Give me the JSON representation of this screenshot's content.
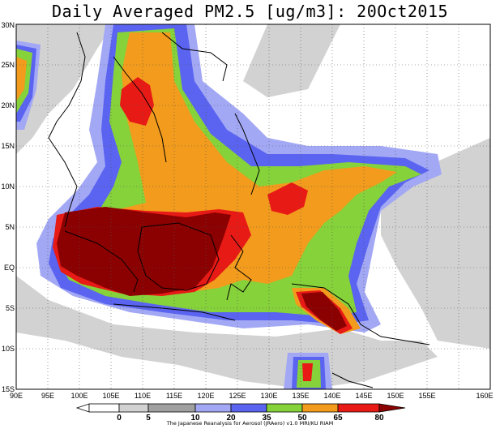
{
  "title": "Daily Averaged PM2.5 [ug/m3]: 20Oct2015",
  "credit": "The Japanese Reanalysis for Aerosol (JRAero) v1.0 MRI/KU RIAM",
  "lon_labels": [
    "90E",
    "95E",
    "100E",
    "105E",
    "110E",
    "115E",
    "120E",
    "125E",
    "130E",
    "135E",
    "140E",
    "145E",
    "150E",
    "155E",
    "160E"
  ],
  "lat_labels": [
    "30N",
    "25N",
    "20N",
    "15N",
    "10N",
    "5N",
    "EQ",
    "5S",
    "10S",
    "15S"
  ],
  "colorbar": {
    "levels": [
      "0",
      "5",
      "10",
      "20",
      "35",
      "50",
      "65",
      "80"
    ],
    "colors": [
      "#ffffff",
      "#d2d2d2",
      "#a0a0a0",
      "#a3a8f5",
      "#5a64f0",
      "#86d23a",
      "#f29b1c",
      "#e81a16",
      "#8b0000"
    ]
  },
  "colors": {
    "ocean_gray": "#d2d2d2",
    "light_blue": "#a3a8f5",
    "blue": "#5a64f0",
    "green": "#86d23a",
    "orange": "#f29b1c",
    "red": "#e81a16",
    "dark_red": "#8b0000"
  }
}
